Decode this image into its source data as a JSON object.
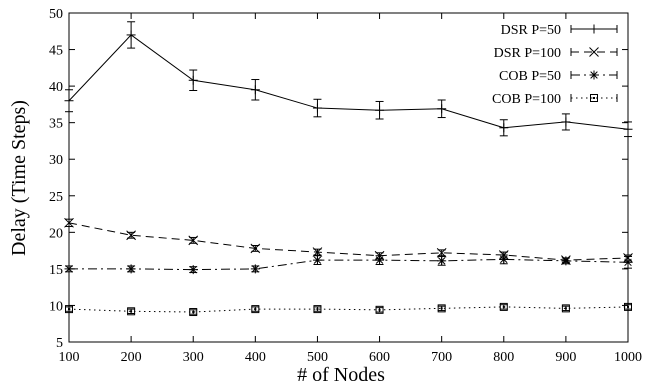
{
  "chart_data": {
    "type": "line",
    "title": "",
    "xlabel": "# of Nodes",
    "ylabel": "Delay (Time Steps)",
    "x": [
      100,
      200,
      300,
      400,
      500,
      600,
      700,
      800,
      900,
      1000
    ],
    "xlim": [
      100,
      1000
    ],
    "ylim": [
      5,
      50
    ],
    "xticks": [
      "100",
      "200",
      "300",
      "400",
      "500",
      "600",
      "700",
      "800",
      "900",
      "1000"
    ],
    "yticks": [
      "5",
      "10",
      "15",
      "20",
      "25",
      "30",
      "35",
      "40",
      "45",
      "50"
    ],
    "grid": false,
    "legend_position": "top-right",
    "series": [
      {
        "name": "DSR P=50",
        "marker": "plus",
        "dash": "solid",
        "values": [
          38,
          47,
          40.8,
          39.5,
          37,
          36.7,
          36.9,
          34.3,
          35.1,
          34.1
        ],
        "errors": [
          1.5,
          1.8,
          1.4,
          1.4,
          1.2,
          1.2,
          1.2,
          1.1,
          1.1,
          1.0
        ]
      },
      {
        "name": "DSR P=100",
        "marker": "x",
        "dash": "dashed",
        "values": [
          21.3,
          19.6,
          18.9,
          17.8,
          17.3,
          16.8,
          17.2,
          16.9,
          16.2,
          16.5
        ],
        "errors": [
          0.5,
          0.4,
          0.4,
          0.4,
          0.4,
          0.4,
          0.4,
          0.4,
          0.3,
          0.4
        ]
      },
      {
        "name": "COB P=50",
        "marker": "star",
        "dash": "dashdot",
        "values": [
          15,
          15,
          14.9,
          15,
          16.2,
          16.2,
          16.1,
          16.3,
          16.1,
          15.9
        ],
        "errors": [
          0.4,
          0.4,
          0.4,
          0.4,
          0.6,
          0.6,
          0.6,
          0.6,
          0.4,
          0.8
        ]
      },
      {
        "name": "COB P=100",
        "marker": "square",
        "dash": "dotted",
        "values": [
          9.5,
          9.2,
          9.1,
          9.5,
          9.5,
          9.4,
          9.6,
          9.8,
          9.6,
          9.8
        ],
        "errors": [
          0.3,
          0.3,
          0.3,
          0.3,
          0.3,
          0.3,
          0.3,
          0.3,
          0.3,
          0.3
        ]
      }
    ]
  }
}
